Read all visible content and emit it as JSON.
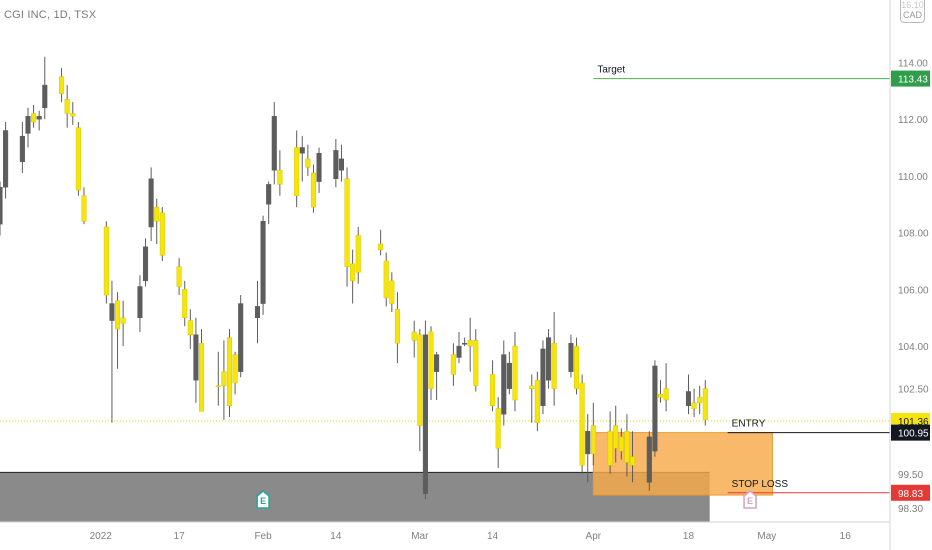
{
  "header": {
    "symbol_title": "CGI INC, 1D, TSX",
    "currency_top": "16.10",
    "currency": "CAD"
  },
  "colors": {
    "up_candle": "#5d5d5d",
    "down_candle": "#f5e50a",
    "target_line": "#4caf50",
    "entry_line": "#131722",
    "stop_line": "#e53935",
    "entry_zone": "#f7a94a",
    "support_zone": "#8a8a8a",
    "last_price_line": "#e8d800"
  },
  "chart_data": {
    "type": "candlestick",
    "y_axis": {
      "range": [
        97.8,
        116.2
      ],
      "ticks": [
        "98.30",
        "99.50",
        "102.50",
        "104.00",
        "106.00",
        "108.00",
        "110.00",
        "112.00",
        "114.00"
      ],
      "side": "right"
    },
    "x_axis": {
      "range": [
        "2021-12-16",
        "2022-05-24"
      ],
      "ticks": [
        {
          "date": "2022-01-03",
          "label": "2022"
        },
        {
          "date": "2022-01-17",
          "label": "17"
        },
        {
          "date": "2022-02-01",
          "label": "Feb"
        },
        {
          "date": "2022-02-14",
          "label": "14"
        },
        {
          "date": "2022-03-01",
          "label": "Mar"
        },
        {
          "date": "2022-03-14",
          "label": "14"
        },
        {
          "date": "2022-04-01",
          "label": "Apr"
        },
        {
          "date": "2022-04-18",
          "label": "18"
        },
        {
          "date": "2022-05-02",
          "label": "May"
        },
        {
          "date": "2022-05-16",
          "label": "16"
        }
      ]
    },
    "candles": [
      {
        "date": "2021-12-16",
        "open": 108.3,
        "high": 109.8,
        "low": 107.9,
        "close": 109.6,
        "dir": "up"
      },
      {
        "date": "2021-12-17",
        "open": 109.6,
        "high": 111.9,
        "low": 109.2,
        "close": 111.6,
        "dir": "up"
      },
      {
        "date": "2021-12-20",
        "open": 110.5,
        "high": 111.9,
        "low": 110.1,
        "close": 111.4,
        "dir": "up"
      },
      {
        "date": "2021-12-21",
        "open": 111.5,
        "high": 112.4,
        "low": 111.0,
        "close": 112.1,
        "dir": "up"
      },
      {
        "date": "2021-12-22",
        "open": 112.2,
        "high": 112.5,
        "low": 111.7,
        "close": 111.9,
        "dir": "down"
      },
      {
        "date": "2021-12-23",
        "open": 112.0,
        "high": 112.3,
        "low": 111.6,
        "close": 112.1,
        "dir": "up"
      },
      {
        "date": "2021-12-24",
        "open": 112.4,
        "high": 114.2,
        "low": 112.0,
        "close": 113.2,
        "dir": "up"
      },
      {
        "date": "2021-12-27",
        "open": 113.5,
        "high": 113.8,
        "low": 112.6,
        "close": 112.9,
        "dir": "down"
      },
      {
        "date": "2021-12-28",
        "open": 112.7,
        "high": 113.2,
        "low": 111.7,
        "close": 112.2,
        "dir": "down"
      },
      {
        "date": "2021-12-29",
        "open": 112.2,
        "high": 112.6,
        "low": 111.8,
        "close": 112.1,
        "dir": "down"
      },
      {
        "date": "2021-12-30",
        "open": 111.7,
        "high": 111.9,
        "low": 109.3,
        "close": 109.5,
        "dir": "down"
      },
      {
        "date": "2021-12-31",
        "open": 109.3,
        "high": 109.6,
        "low": 108.3,
        "close": 108.4,
        "dir": "down"
      },
      {
        "date": "2022-01-04",
        "open": 108.2,
        "high": 108.4,
        "low": 105.5,
        "close": 105.8,
        "dir": "down"
      },
      {
        "date": "2022-01-05",
        "open": 104.9,
        "high": 106.3,
        "low": 101.3,
        "close": 105.5,
        "dir": "up"
      },
      {
        "date": "2022-01-06",
        "open": 105.6,
        "high": 105.9,
        "low": 103.2,
        "close": 104.6,
        "dir": "down"
      },
      {
        "date": "2022-01-07",
        "open": 104.8,
        "high": 105.6,
        "low": 104.0,
        "close": 105.0,
        "dir": "down"
      },
      {
        "date": "2022-01-10",
        "open": 105.0,
        "high": 106.5,
        "low": 104.5,
        "close": 106.1,
        "dir": "up"
      },
      {
        "date": "2022-01-11",
        "open": 106.3,
        "high": 107.8,
        "low": 106.1,
        "close": 107.5,
        "dir": "up"
      },
      {
        "date": "2022-01-12",
        "open": 108.2,
        "high": 110.3,
        "low": 107.7,
        "close": 109.9,
        "dir": "up"
      },
      {
        "date": "2022-01-13",
        "open": 108.9,
        "high": 109.2,
        "low": 107.6,
        "close": 108.4,
        "dir": "down"
      },
      {
        "date": "2022-01-14",
        "open": 108.7,
        "high": 108.9,
        "low": 107.0,
        "close": 107.2,
        "dir": "down"
      },
      {
        "date": "2022-01-17",
        "open": 106.8,
        "high": 107.1,
        "low": 105.8,
        "close": 106.1,
        "dir": "down"
      },
      {
        "date": "2022-01-18",
        "open": 106.0,
        "high": 106.3,
        "low": 104.7,
        "close": 105.0,
        "dir": "down"
      },
      {
        "date": "2022-01-19",
        "open": 104.9,
        "high": 105.3,
        "low": 103.9,
        "close": 104.4,
        "dir": "down"
      },
      {
        "date": "2022-01-20",
        "open": 104.4,
        "high": 105.0,
        "low": 102.0,
        "close": 102.8,
        "dir": "up"
      },
      {
        "date": "2022-01-21",
        "open": 104.1,
        "high": 104.6,
        "low": 101.7,
        "close": 101.7,
        "dir": "down"
      },
      {
        "date": "2022-01-24",
        "open": 102.6,
        "high": 103.8,
        "low": 101.9,
        "close": 102.6,
        "dir": "down"
      },
      {
        "date": "2022-01-25",
        "open": 102.6,
        "high": 104.2,
        "low": 101.4,
        "close": 103.1,
        "dir": "down"
      },
      {
        "date": "2022-01-26",
        "open": 104.3,
        "high": 104.6,
        "low": 101.5,
        "close": 101.9,
        "dir": "down"
      },
      {
        "date": "2022-01-27",
        "open": 102.7,
        "high": 103.8,
        "low": 102.3,
        "close": 103.7,
        "dir": "down"
      },
      {
        "date": "2022-01-28",
        "open": 103.1,
        "high": 105.8,
        "low": 102.9,
        "close": 105.5,
        "dir": "up"
      },
      {
        "date": "2022-01-31",
        "open": 105.4,
        "high": 106.3,
        "low": 104.1,
        "close": 105.0,
        "dir": "up"
      },
      {
        "date": "2022-02-01",
        "open": 105.5,
        "high": 108.6,
        "low": 105.1,
        "close": 108.4,
        "dir": "up"
      },
      {
        "date": "2022-02-02",
        "open": 109.0,
        "high": 109.8,
        "low": 108.3,
        "close": 109.7,
        "dir": "up"
      },
      {
        "date": "2022-02-03",
        "open": 110.2,
        "high": 112.6,
        "low": 109.7,
        "close": 112.1,
        "dir": "up"
      },
      {
        "date": "2022-02-04",
        "open": 110.2,
        "high": 110.9,
        "low": 109.3,
        "close": 109.7,
        "dir": "down"
      },
      {
        "date": "2022-02-07",
        "open": 111.0,
        "high": 111.6,
        "low": 108.9,
        "close": 109.3,
        "dir": "down"
      },
      {
        "date": "2022-02-08",
        "open": 110.8,
        "high": 111.4,
        "low": 109.8,
        "close": 111.0,
        "dir": "up"
      },
      {
        "date": "2022-02-09",
        "open": 110.6,
        "high": 111.1,
        "low": 110.0,
        "close": 110.3,
        "dir": "down"
      },
      {
        "date": "2022-02-10",
        "open": 110.1,
        "high": 110.4,
        "low": 108.7,
        "close": 108.9,
        "dir": "down"
      },
      {
        "date": "2022-02-11",
        "open": 109.8,
        "high": 111.0,
        "low": 109.4,
        "close": 110.8,
        "dir": "up"
      },
      {
        "date": "2022-02-14",
        "open": 110.9,
        "high": 111.3,
        "low": 109.6,
        "close": 109.9,
        "dir": "up"
      },
      {
        "date": "2022-02-15",
        "open": 110.6,
        "high": 111.1,
        "low": 109.8,
        "close": 110.2,
        "dir": "up"
      },
      {
        "date": "2022-02-16",
        "open": 109.9,
        "high": 110.3,
        "low": 106.1,
        "close": 106.8,
        "dir": "down"
      },
      {
        "date": "2022-02-17",
        "open": 106.9,
        "high": 107.4,
        "low": 105.5,
        "close": 106.3,
        "dir": "down"
      },
      {
        "date": "2022-02-18",
        "open": 106.6,
        "high": 108.2,
        "low": 106.2,
        "close": 107.9,
        "dir": "down"
      },
      {
        "date": "2022-02-22",
        "open": 107.6,
        "high": 108.1,
        "low": 107.2,
        "close": 107.4,
        "dir": "down"
      },
      {
        "date": "2022-02-23",
        "open": 107.0,
        "high": 107.3,
        "low": 105.4,
        "close": 105.7,
        "dir": "down"
      },
      {
        "date": "2022-02-24",
        "open": 106.3,
        "high": 106.6,
        "low": 105.2,
        "close": 105.5,
        "dir": "down"
      },
      {
        "date": "2022-02-25",
        "open": 105.3,
        "high": 105.9,
        "low": 103.4,
        "close": 104.1,
        "dir": "down"
      },
      {
        "date": "2022-02-28",
        "open": 104.5,
        "high": 104.9,
        "low": 103.6,
        "close": 104.2,
        "dir": "down"
      },
      {
        "date": "2022-03-01",
        "open": 104.4,
        "high": 104.6,
        "low": 100.3,
        "close": 101.2,
        "dir": "down"
      },
      {
        "date": "2022-03-02",
        "open": 98.8,
        "high": 104.9,
        "low": 98.6,
        "close": 104.4,
        "dir": "up"
      },
      {
        "date": "2022-03-03",
        "open": 104.5,
        "high": 104.7,
        "low": 102.1,
        "close": 102.5,
        "dir": "down"
      },
      {
        "date": "2022-03-04",
        "open": 103.1,
        "high": 103.8,
        "low": 102.1,
        "close": 103.7,
        "dir": "up"
      },
      {
        "date": "2022-03-07",
        "open": 103.7,
        "high": 104.1,
        "low": 102.6,
        "close": 103.0,
        "dir": "down"
      },
      {
        "date": "2022-03-08",
        "open": 103.6,
        "high": 104.5,
        "low": 103.4,
        "close": 104.0,
        "dir": "up"
      },
      {
        "date": "2022-03-09",
        "open": 104.1,
        "high": 104.3,
        "low": 104.0,
        "close": 104.1,
        "dir": "up"
      },
      {
        "date": "2022-03-10",
        "open": 104.0,
        "high": 105.0,
        "low": 103.1,
        "close": 104.2,
        "dir": "down"
      },
      {
        "date": "2022-03-11",
        "open": 104.2,
        "high": 104.6,
        "low": 102.4,
        "close": 102.6,
        "dir": "down"
      },
      {
        "date": "2022-03-14",
        "open": 103.0,
        "high": 103.5,
        "low": 101.7,
        "close": 101.9,
        "dir": "down"
      },
      {
        "date": "2022-03-15",
        "open": 101.8,
        "high": 102.2,
        "low": 99.7,
        "close": 100.4,
        "dir": "down"
      },
      {
        "date": "2022-03-16",
        "open": 101.6,
        "high": 104.2,
        "low": 101.2,
        "close": 103.7,
        "dir": "up"
      },
      {
        "date": "2022-03-17",
        "open": 103.4,
        "high": 103.8,
        "low": 102.3,
        "close": 102.5,
        "dir": "up"
      },
      {
        "date": "2022-03-18",
        "open": 104.0,
        "high": 104.5,
        "low": 101.7,
        "close": 102.1,
        "dir": "down"
      },
      {
        "date": "2022-03-21",
        "open": 102.5,
        "high": 103.0,
        "low": 101.3,
        "close": 102.6,
        "dir": "down"
      },
      {
        "date": "2022-03-22",
        "open": 102.8,
        "high": 103.1,
        "low": 101.0,
        "close": 101.3,
        "dir": "down"
      },
      {
        "date": "2022-03-23",
        "open": 101.9,
        "high": 104.2,
        "low": 101.6,
        "close": 103.9,
        "dir": "up"
      },
      {
        "date": "2022-03-24",
        "open": 102.8,
        "high": 104.6,
        "low": 102.5,
        "close": 104.3,
        "dir": "up"
      },
      {
        "date": "2022-03-25",
        "open": 104.1,
        "high": 105.2,
        "low": 101.9,
        "close": 102.5,
        "dir": "down"
      },
      {
        "date": "2022-03-28",
        "open": 103.1,
        "high": 104.4,
        "low": 102.9,
        "close": 104.1,
        "dir": "up"
      },
      {
        "date": "2022-03-29",
        "open": 104.0,
        "high": 104.3,
        "low": 102.3,
        "close": 102.5,
        "dir": "down"
      },
      {
        "date": "2022-03-30",
        "open": 102.7,
        "high": 103.0,
        "low": 99.5,
        "close": 99.8,
        "dir": "down"
      },
      {
        "date": "2022-03-31",
        "open": 100.2,
        "high": 101.6,
        "low": 99.2,
        "close": 101.0,
        "dir": "up"
      },
      {
        "date": "2022-04-01",
        "open": 101.2,
        "high": 102.0,
        "low": 99.8,
        "close": 100.2,
        "dir": "down"
      },
      {
        "date": "2022-04-04",
        "open": 99.8,
        "high": 101.7,
        "low": 99.5,
        "close": 101.0,
        "dir": "down"
      },
      {
        "date": "2022-04-05",
        "open": 101.2,
        "high": 101.9,
        "low": 99.9,
        "close": 100.4,
        "dir": "down"
      },
      {
        "date": "2022-04-06",
        "open": 100.3,
        "high": 101.1,
        "low": 100.0,
        "close": 100.8,
        "dir": "down"
      },
      {
        "date": "2022-04-07",
        "open": 101.0,
        "high": 101.6,
        "low": 99.4,
        "close": 99.9,
        "dir": "down"
      },
      {
        "date": "2022-04-08",
        "open": 99.8,
        "high": 101.0,
        "low": 99.2,
        "close": 100.1,
        "dir": "down"
      },
      {
        "date": "2022-04-11",
        "open": 99.2,
        "high": 101.0,
        "low": 98.9,
        "close": 100.8,
        "dir": "up"
      },
      {
        "date": "2022-04-12",
        "open": 100.3,
        "high": 103.5,
        "low": 100.1,
        "close": 103.3,
        "dir": "up"
      },
      {
        "date": "2022-04-13",
        "open": 102.3,
        "high": 102.8,
        "low": 102.0,
        "close": 102.2,
        "dir": "down"
      },
      {
        "date": "2022-04-14",
        "open": 102.5,
        "high": 103.4,
        "low": 101.7,
        "close": 102.1,
        "dir": "down"
      },
      {
        "date": "2022-04-18",
        "open": 102.4,
        "high": 103.0,
        "low": 101.6,
        "close": 101.9,
        "dir": "up"
      },
      {
        "date": "2022-04-19",
        "open": 102.0,
        "high": 102.5,
        "low": 101.5,
        "close": 101.8,
        "dir": "down"
      },
      {
        "date": "2022-04-20",
        "open": 102.0,
        "high": 102.6,
        "low": 101.6,
        "close": 102.2,
        "dir": "down"
      },
      {
        "date": "2022-04-21",
        "open": 102.5,
        "high": 102.8,
        "low": 101.2,
        "close": 101.4,
        "dir": "down"
      }
    ],
    "levels": {
      "target": {
        "label": "Target",
        "price": 113.43,
        "from": "2022-04-01",
        "price_label": "113.43"
      },
      "entry": {
        "label": "ENTRY",
        "price": 100.95,
        "from": "2022-04-25",
        "price_label": "100.95"
      },
      "stop_loss": {
        "label": "STOP LOSS",
        "price": 98.83,
        "from": "2022-04-25",
        "price_label": "98.83"
      },
      "last_price": {
        "price": 101.36,
        "price_label": "101.36"
      },
      "support_line_price": 99.55
    },
    "zones": {
      "entry_zone": {
        "start": "2022-04-01",
        "end": "2022-05-03",
        "top": 100.95,
        "bottom": 98.75
      },
      "support_zone": {
        "start": "2021-12-16",
        "end": "2022-04-20",
        "top": 99.55,
        "bottom": 97.8
      }
    },
    "event_markers": [
      {
        "date": "2022-02-01",
        "label": "E",
        "color": "#26a69a"
      },
      {
        "date": "2022-04-29",
        "label": "E",
        "color": "#d7a6c2"
      }
    ]
  }
}
